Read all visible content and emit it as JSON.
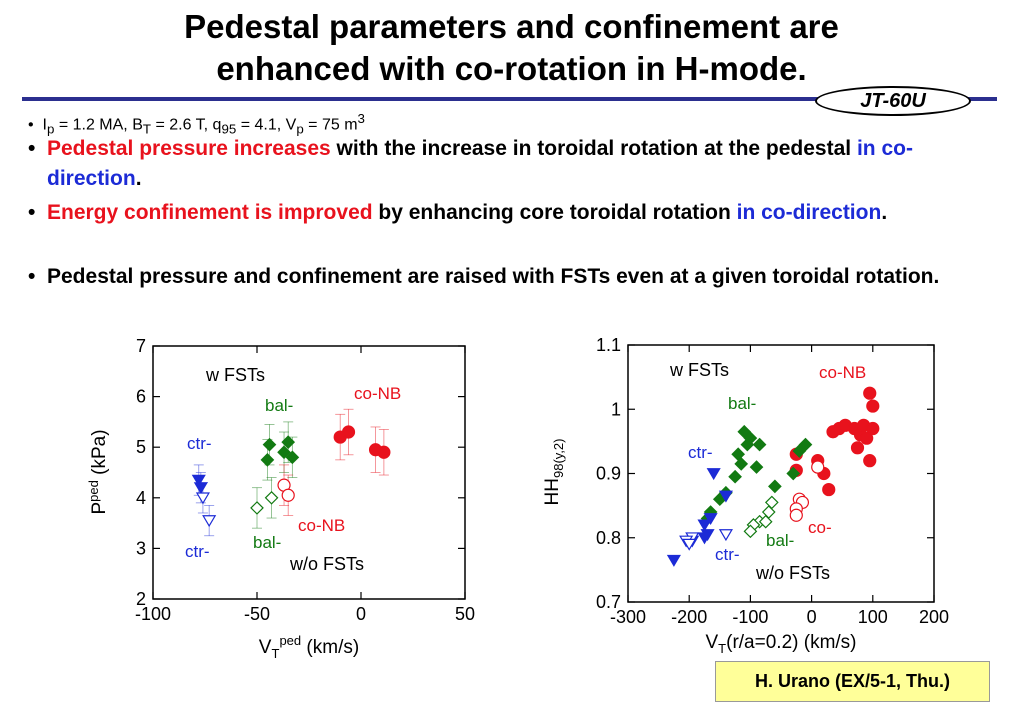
{
  "slide": {
    "title_line1": "Pedestal parameters and confinement are",
    "title_line2": "enhanced with co-rotation in H-mode.",
    "tag": "JT-60U",
    "params": {
      "ip": "I",
      "ip_sub": "p",
      "ip_val": " = 1.2 MA, B",
      "bt_sub": "T",
      "bt_val": " = 2.6 T, q",
      "q_sub": "95",
      "q_val": " = 4.1, V",
      "v_sub": "p",
      "v_val": " = 75 m",
      "v_sup": "3"
    },
    "bullets": [
      {
        "red": "Pedestal pressure increases",
        "black": " with the increase in toroidal rotation at the pedestal ",
        "blue": "in co-direction",
        "end": "."
      },
      {
        "red": "Energy confinement is improved",
        "black": " by enhancing core toroidal rotation ",
        "blue": "in co-direction",
        "end": "."
      },
      {
        "black": "Pedestal pressure and confinement are raised with FSTs even at a given toroidal rotation."
      }
    ],
    "credit": "H. Urano (EX/5-1, Thu.)"
  },
  "chart_data": [
    {
      "type": "scatter",
      "xlabel": "V",
      "xlabel_sub": "T",
      "xlabel_sup": "ped",
      "xlabel_unit": " (km/s)",
      "ylabel": "P",
      "ylabel_sup": "ped",
      "ylabel_unit": " (kPa)",
      "xlim": [
        -100,
        50
      ],
      "ylim": [
        2,
        7
      ],
      "xticks": [
        "-100",
        "-50",
        "0",
        "50"
      ],
      "yticks": [
        "2",
        "3",
        "4",
        "5",
        "6",
        "7"
      ],
      "annotations": {
        "w_fsts": "w FSTs",
        "wo_fsts": "w/o FSTs",
        "co_top": "co-NB",
        "bal_top": "bal-",
        "ctr_top": "ctr-",
        "co_bot": "co-NB",
        "bal_bot": "bal-",
        "ctr_bot": "ctr-"
      },
      "series": [
        {
          "name": "co-NB w FSTs",
          "color": "#e8121d",
          "marker": "circle-filled",
          "points": [
            [
              -10,
              5.2
            ],
            [
              -6,
              5.3
            ],
            [
              7,
              4.95
            ],
            [
              11,
              4.9
            ]
          ],
          "err": 0.45
        },
        {
          "name": "bal- w FSTs",
          "color": "#127a12",
          "marker": "diamond-filled",
          "points": [
            [
              -44,
              5.05
            ],
            [
              -35,
              5.1
            ],
            [
              -37,
              4.9
            ],
            [
              -45,
              4.75
            ],
            [
              -33,
              4.8
            ]
          ],
          "err": 0.4
        },
        {
          "name": "ctr- w FSTs",
          "color": "#1c2bd6",
          "marker": "triangle-filled",
          "points": [
            [
              -78,
              4.35
            ],
            [
              -77,
              4.2
            ]
          ],
          "err": 0.3
        },
        {
          "name": "co-NB w/o FSTs",
          "color": "#e8121d",
          "marker": "circle-open",
          "points": [
            [
              -37,
              4.25
            ],
            [
              -35,
              4.05
            ]
          ],
          "err": 0.4
        },
        {
          "name": "bal- w/o FSTs",
          "color": "#127a12",
          "marker": "diamond-open",
          "points": [
            [
              -50,
              3.8
            ],
            [
              -43,
              4.0
            ]
          ],
          "err": 0.4
        },
        {
          "name": "ctr- w/o FSTs",
          "color": "#1c2bd6",
          "marker": "triangle-open",
          "points": [
            [
              -76,
              4.0
            ],
            [
              -73,
              3.55
            ]
          ],
          "err": 0.3
        }
      ]
    },
    {
      "type": "scatter",
      "xlabel": "V",
      "xlabel_sub": "T",
      "xlabel_rest": "(r/a=0.2) (km/s)",
      "ylabel": "HH",
      "ylabel_sub": "98(y,2)",
      "xlim": [
        -300,
        200
      ],
      "ylim": [
        0.7,
        1.1
      ],
      "xticks": [
        "-300",
        "-200",
        "-100",
        "0",
        "100",
        "200"
      ],
      "yticks": [
        "0.7",
        "0.8",
        "0.9",
        "1",
        "1.1"
      ],
      "annotations": {
        "w_fsts": "w FSTs",
        "wo_fsts": "w/o FSTs",
        "co_top": "co-NB",
        "bal_top": "bal-",
        "ctr_top": "ctr-",
        "co_bot": "co-",
        "bal_bot": "bal-",
        "ctr_bot": "ctr-"
      },
      "series": [
        {
          "name": "co-NB w FSTs",
          "color": "#e8121d",
          "marker": "circle-filled",
          "points": [
            [
              -25,
              0.93
            ],
            [
              -25,
              0.905
            ],
            [
              10,
              0.92
            ],
            [
              20,
              0.9
            ],
            [
              28,
              0.875
            ],
            [
              35,
              0.965
            ],
            [
              45,
              0.97
            ],
            [
              55,
              0.975
            ],
            [
              70,
              0.97
            ],
            [
              80,
              0.96
            ],
            [
              85,
              0.975
            ],
            [
              75,
              0.94
            ],
            [
              90,
              0.955
            ],
            [
              95,
              1.025
            ],
            [
              100,
              1.005
            ],
            [
              100,
              0.97
            ],
            [
              95,
              0.92
            ]
          ]
        },
        {
          "name": "bal- w FSTs",
          "color": "#127a12",
          "marker": "diamond-filled",
          "points": [
            [
              -110,
              0.965
            ],
            [
              -105,
              0.945
            ],
            [
              -100,
              0.955
            ],
            [
              -85,
              0.945
            ],
            [
              -120,
              0.93
            ],
            [
              -115,
              0.915
            ],
            [
              -90,
              0.91
            ],
            [
              -125,
              0.895
            ],
            [
              -140,
              0.87
            ],
            [
              -150,
              0.86
            ],
            [
              -60,
              0.88
            ],
            [
              -30,
              0.9
            ],
            [
              -20,
              0.935
            ],
            [
              -10,
              0.945
            ],
            [
              -165,
              0.84
            ],
            [
              -170,
              0.83
            ]
          ]
        },
        {
          "name": "ctr- w FSTs",
          "color": "#1c2bd6",
          "marker": "triangle-filled",
          "points": [
            [
              -160,
              0.9
            ],
            [
              -140,
              0.865
            ],
            [
              -165,
              0.83
            ],
            [
              -175,
              0.82
            ],
            [
              -170,
              0.805
            ],
            [
              -175,
              0.8
            ],
            [
              -195,
              0.795
            ],
            [
              -225,
              0.765
            ]
          ]
        },
        {
          "name": "co-NB w/o FSTs",
          "color": "#e8121d",
          "marker": "circle-open",
          "points": [
            [
              10,
              0.91
            ],
            [
              -20,
              0.86
            ],
            [
              -15,
              0.855
            ],
            [
              -25,
              0.845
            ],
            [
              -25,
              0.835
            ]
          ]
        },
        {
          "name": "bal- w/o FSTs",
          "color": "#127a12",
          "marker": "diamond-open",
          "points": [
            [
              -65,
              0.855
            ],
            [
              -70,
              0.84
            ],
            [
              -85,
              0.825
            ],
            [
              -95,
              0.82
            ],
            [
              -75,
              0.825
            ],
            [
              -100,
              0.81
            ]
          ]
        },
        {
          "name": "ctr- w/o FSTs",
          "color": "#1c2bd6",
          "marker": "triangle-open",
          "points": [
            [
              -140,
              0.805
            ],
            [
              -195,
              0.8
            ],
            [
              -205,
              0.795
            ],
            [
              -200,
              0.79
            ]
          ]
        }
      ]
    }
  ]
}
